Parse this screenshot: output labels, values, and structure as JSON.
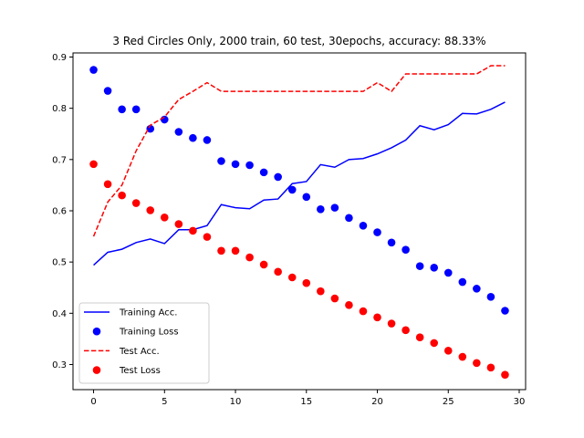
{
  "chart_data": {
    "type": "line",
    "title": "3 Red Circles Only, 2000 train, 60 test, 30epochs, accuracy: 88.33%",
    "xlabel": "",
    "ylabel": "",
    "xlim": [
      -1.45,
      30.45
    ],
    "ylim": [
      0.251,
      0.908
    ],
    "xticks": [
      0,
      5,
      10,
      15,
      20,
      25,
      30
    ],
    "yticks": [
      0.3,
      0.4,
      0.5,
      0.6,
      0.7,
      0.8,
      0.9
    ],
    "grid": false,
    "legend_position": "lower-left",
    "x": [
      0,
      1,
      2,
      3,
      4,
      5,
      6,
      7,
      8,
      9,
      10,
      11,
      12,
      13,
      14,
      15,
      16,
      17,
      18,
      19,
      20,
      21,
      22,
      23,
      24,
      25,
      26,
      27,
      28,
      29
    ],
    "series": [
      {
        "name": "Training Acc.",
        "style": "line",
        "color": "#0000ff",
        "values": [
          0.494,
          0.519,
          0.525,
          0.538,
          0.545,
          0.536,
          0.563,
          0.563,
          0.571,
          0.612,
          0.606,
          0.604,
          0.621,
          0.623,
          0.653,
          0.657,
          0.69,
          0.685,
          0.7,
          0.702,
          0.711,
          0.723,
          0.738,
          0.766,
          0.758,
          0.768,
          0.79,
          0.789,
          0.798,
          0.812
        ]
      },
      {
        "name": "Training Loss",
        "style": "dots",
        "color": "#0000ff",
        "values": [
          0.875,
          0.834,
          0.798,
          0.798,
          0.76,
          0.778,
          0.754,
          0.742,
          0.738,
          0.697,
          0.691,
          0.689,
          0.675,
          0.666,
          0.641,
          0.627,
          0.603,
          0.606,
          0.586,
          0.571,
          0.558,
          0.538,
          0.524,
          0.492,
          0.489,
          0.479,
          0.461,
          0.448,
          0.432,
          0.405
        ]
      },
      {
        "name": "Test Acc.",
        "style": "dashed",
        "color": "#ff0000",
        "values": [
          0.55,
          0.617,
          0.65,
          0.717,
          0.767,
          0.783,
          0.817,
          0.833,
          0.85,
          0.833,
          0.833,
          0.833,
          0.833,
          0.833,
          0.833,
          0.833,
          0.833,
          0.833,
          0.833,
          0.833,
          0.85,
          0.833,
          0.867,
          0.867,
          0.867,
          0.867,
          0.867,
          0.867,
          0.883,
          0.883
        ]
      },
      {
        "name": "Test Loss",
        "style": "dots",
        "color": "#ff0000",
        "values": [
          0.691,
          0.652,
          0.63,
          0.615,
          0.601,
          0.587,
          0.574,
          0.561,
          0.549,
          0.522,
          0.522,
          0.509,
          0.495,
          0.481,
          0.47,
          0.459,
          0.443,
          0.429,
          0.416,
          0.404,
          0.392,
          0.38,
          0.367,
          0.353,
          0.342,
          0.327,
          0.315,
          0.303,
          0.294,
          0.28
        ]
      }
    ]
  }
}
